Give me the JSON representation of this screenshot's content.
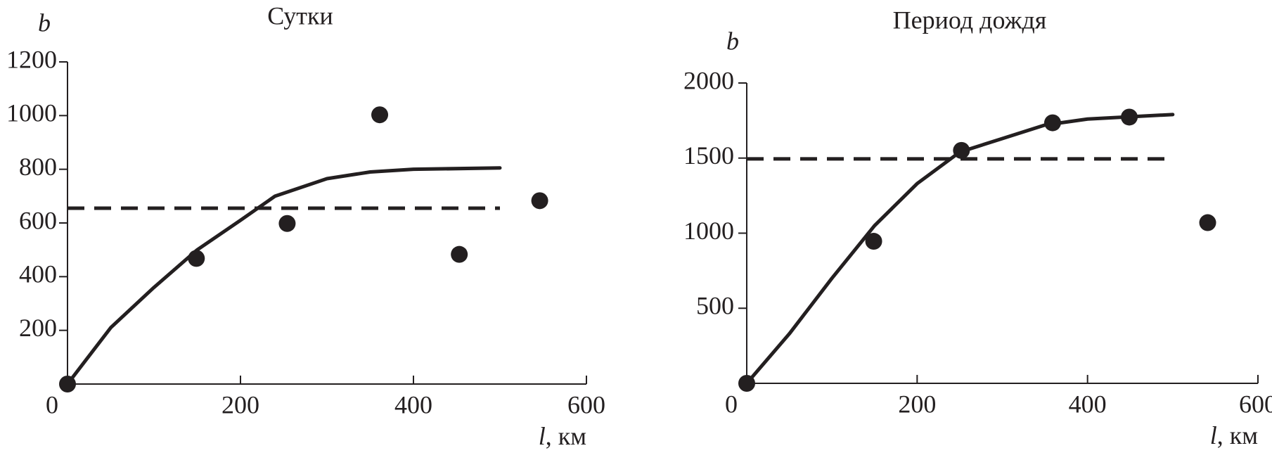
{
  "chart_data": [
    {
      "type": "line",
      "title": "Сутки",
      "ylabel": "b",
      "xlabel_var": "l",
      "xlabel_unit": ", км",
      "xlim": [
        0,
        600
      ],
      "xticks": [
        0,
        200,
        400,
        600
      ],
      "ylim": [
        0,
        1200
      ],
      "yticks": [
        200,
        400,
        600,
        800,
        1000,
        1200
      ],
      "series": [
        {
          "style": "solid",
          "color": "#231f20",
          "x": [
            0,
            50,
            100,
            150,
            200,
            240,
            300,
            350,
            400,
            500
          ],
          "values": [
            0,
            210,
            360,
            500,
            610,
            700,
            765,
            790,
            800,
            805
          ]
        },
        {
          "style": "dashed",
          "color": "#231f20",
          "x": [
            0,
            500
          ],
          "values": [
            655,
            655
          ]
        },
        {
          "style": "markers",
          "color": "#231f20",
          "x": [
            0,
            149,
            254,
            361,
            453,
            546
          ],
          "values": [
            0,
            468,
            598,
            1003,
            483,
            683
          ]
        }
      ]
    },
    {
      "type": "line",
      "title": "Период дождя",
      "ylabel": "b",
      "xlabel_var": "l",
      "xlabel_unit": ", км",
      "xlim": [
        0,
        600
      ],
      "xticks": [
        0,
        200,
        400,
        600
      ],
      "ylim": [
        0,
        2000
      ],
      "yticks": [
        500,
        1000,
        1500,
        2000
      ],
      "series": [
        {
          "style": "solid",
          "color": "#231f20",
          "x": [
            0,
            50,
            100,
            150,
            200,
            250,
            300,
            350,
            400,
            500
          ],
          "values": [
            0,
            330,
            700,
            1050,
            1330,
            1540,
            1630,
            1720,
            1760,
            1790
          ]
        },
        {
          "style": "dashed",
          "color": "#231f20",
          "x": [
            0,
            500
          ],
          "values": [
            1495,
            1495
          ]
        },
        {
          "style": "markers",
          "color": "#231f20",
          "x": [
            0,
            149,
            252,
            359,
            449,
            541
          ],
          "values": [
            0,
            946,
            1551,
            1735,
            1773,
            1070
          ]
        }
      ]
    }
  ]
}
